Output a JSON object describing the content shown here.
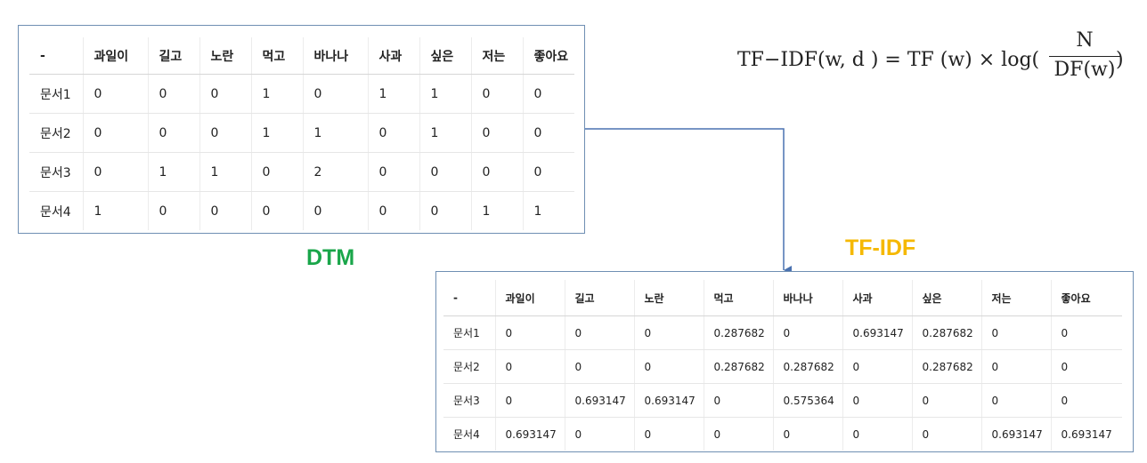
{
  "formula": {
    "lhs": "TF−IDF(w, d ) = TF (w) × log(",
    "numerator": "N",
    "denominator": "DF(w)",
    "close": ")"
  },
  "dtm": {
    "label": "DTM",
    "columns": [
      "-",
      "과일이",
      "길고",
      "노란",
      "먹고",
      "바나나",
      "사과",
      "싶은",
      "저는",
      "좋아요"
    ],
    "rows": [
      [
        "문서1",
        "0",
        "0",
        "0",
        "1",
        "0",
        "1",
        "1",
        "0",
        "0"
      ],
      [
        "문서2",
        "0",
        "0",
        "0",
        "1",
        "1",
        "0",
        "1",
        "0",
        "0"
      ],
      [
        "문서3",
        "0",
        "1",
        "1",
        "0",
        "2",
        "0",
        "0",
        "0",
        "0"
      ],
      [
        "문서4",
        "1",
        "0",
        "0",
        "0",
        "0",
        "0",
        "0",
        "1",
        "1"
      ]
    ]
  },
  "tfidf": {
    "label": "TF-IDF",
    "columns": [
      "-",
      "과일이",
      "길고",
      "노란",
      "먹고",
      "바나나",
      "사과",
      "싶은",
      "저는",
      "좋아요"
    ],
    "rows": [
      [
        "문서1",
        "0",
        "0",
        "0",
        "0.287682",
        "0",
        "0.693147",
        "0.287682",
        "0",
        "0"
      ],
      [
        "문서2",
        "0",
        "0",
        "0",
        "0.287682",
        "0.287682",
        "0",
        "0.287682",
        "0",
        "0"
      ],
      [
        "문서3",
        "0",
        "0.693147",
        "0.693147",
        "0",
        "0.575364",
        "0",
        "0",
        "0",
        "0"
      ],
      [
        "문서4",
        "0.693147",
        "0",
        "0",
        "0",
        "0",
        "0",
        "0",
        "0.693147",
        "0.693147"
      ]
    ]
  },
  "colors": {
    "box_border": "#6f8fb3",
    "arrow": "#4a72b0",
    "dtm_label": "#1aa64a",
    "tfidf_label": "#f5b800"
  }
}
